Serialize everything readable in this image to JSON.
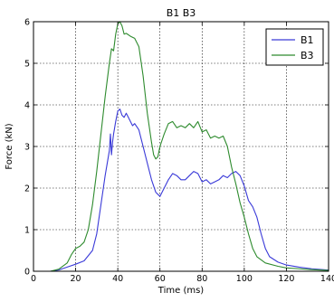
{
  "chart_data": {
    "type": "line",
    "title": "B1 B3",
    "xlabel": "Time (ms)",
    "ylabel": "Force (kN)",
    "xlim": [
      0,
      140
    ],
    "ylim": [
      0,
      6
    ],
    "xticks": [
      0,
      20,
      40,
      60,
      80,
      100,
      120,
      140
    ],
    "yticks": [
      0,
      1,
      2,
      3,
      4,
      5,
      6
    ],
    "grid": true,
    "legend_position": "top-right",
    "series": [
      {
        "name": "B1",
        "color": "#3a3ad8",
        "points": [
          [
            0,
            0
          ],
          [
            8,
            0
          ],
          [
            12,
            0.03
          ],
          [
            16,
            0.1
          ],
          [
            20,
            0.17
          ],
          [
            24,
            0.25
          ],
          [
            28,
            0.5
          ],
          [
            30,
            0.9
          ],
          [
            32,
            1.6
          ],
          [
            34,
            2.3
          ],
          [
            35,
            2.6
          ],
          [
            36,
            2.9
          ],
          [
            36.5,
            3.3
          ],
          [
            37,
            2.8
          ],
          [
            37.5,
            3.1
          ],
          [
            38,
            3.3
          ],
          [
            39,
            3.6
          ],
          [
            40,
            3.85
          ],
          [
            41,
            3.9
          ],
          [
            42,
            3.75
          ],
          [
            43,
            3.7
          ],
          [
            44,
            3.8
          ],
          [
            45,
            3.7
          ],
          [
            46,
            3.6
          ],
          [
            47,
            3.5
          ],
          [
            48,
            3.55
          ],
          [
            50,
            3.4
          ],
          [
            52,
            3.0
          ],
          [
            54,
            2.6
          ],
          [
            56,
            2.2
          ],
          [
            58,
            1.9
          ],
          [
            60,
            1.8
          ],
          [
            62,
            2.0
          ],
          [
            64,
            2.2
          ],
          [
            66,
            2.35
          ],
          [
            68,
            2.3
          ],
          [
            70,
            2.2
          ],
          [
            72,
            2.2
          ],
          [
            74,
            2.3
          ],
          [
            76,
            2.4
          ],
          [
            78,
            2.35
          ],
          [
            80,
            2.15
          ],
          [
            82,
            2.2
          ],
          [
            84,
            2.1
          ],
          [
            86,
            2.15
          ],
          [
            88,
            2.2
          ],
          [
            90,
            2.3
          ],
          [
            92,
            2.25
          ],
          [
            94,
            2.35
          ],
          [
            96,
            2.4
          ],
          [
            98,
            2.3
          ],
          [
            100,
            2.05
          ],
          [
            102,
            1.7
          ],
          [
            104,
            1.55
          ],
          [
            106,
            1.3
          ],
          [
            108,
            0.9
          ],
          [
            110,
            0.55
          ],
          [
            112,
            0.35
          ],
          [
            116,
            0.22
          ],
          [
            120,
            0.15
          ],
          [
            126,
            0.1
          ],
          [
            132,
            0.06
          ],
          [
            140,
            0.03
          ]
        ]
      },
      {
        "name": "B3",
        "color": "#2e8b2e",
        "points": [
          [
            0,
            0
          ],
          [
            8,
            0
          ],
          [
            12,
            0.05
          ],
          [
            16,
            0.2
          ],
          [
            18,
            0.4
          ],
          [
            20,
            0.55
          ],
          [
            22,
            0.6
          ],
          [
            24,
            0.7
          ],
          [
            26,
            1.0
          ],
          [
            28,
            1.6
          ],
          [
            30,
            2.4
          ],
          [
            32,
            3.3
          ],
          [
            34,
            4.2
          ],
          [
            36,
            5.0
          ],
          [
            37,
            5.35
          ],
          [
            38,
            5.3
          ],
          [
            38.5,
            5.5
          ],
          [
            39,
            5.7
          ],
          [
            40,
            5.95
          ],
          [
            41,
            6.0
          ],
          [
            42,
            5.9
          ],
          [
            43,
            5.7
          ],
          [
            44,
            5.72
          ],
          [
            46,
            5.65
          ],
          [
            48,
            5.6
          ],
          [
            50,
            5.4
          ],
          [
            52,
            4.7
          ],
          [
            54,
            3.8
          ],
          [
            56,
            3.1
          ],
          [
            57,
            2.8
          ],
          [
            58,
            2.7
          ],
          [
            59,
            2.75
          ],
          [
            60,
            3.0
          ],
          [
            62,
            3.3
          ],
          [
            64,
            3.55
          ],
          [
            66,
            3.6
          ],
          [
            68,
            3.45
          ],
          [
            70,
            3.5
          ],
          [
            72,
            3.45
          ],
          [
            74,
            3.55
          ],
          [
            76,
            3.45
          ],
          [
            78,
            3.6
          ],
          [
            80,
            3.35
          ],
          [
            82,
            3.4
          ],
          [
            84,
            3.2
          ],
          [
            86,
            3.25
          ],
          [
            88,
            3.2
          ],
          [
            90,
            3.25
          ],
          [
            92,
            3.0
          ],
          [
            94,
            2.5
          ],
          [
            96,
            2.1
          ],
          [
            98,
            1.65
          ],
          [
            100,
            1.3
          ],
          [
            102,
            0.9
          ],
          [
            104,
            0.55
          ],
          [
            106,
            0.35
          ],
          [
            110,
            0.2
          ],
          [
            116,
            0.12
          ],
          [
            120,
            0.08
          ],
          [
            126,
            0.06
          ],
          [
            132,
            0.04
          ],
          [
            140,
            0.02
          ]
        ]
      }
    ]
  }
}
